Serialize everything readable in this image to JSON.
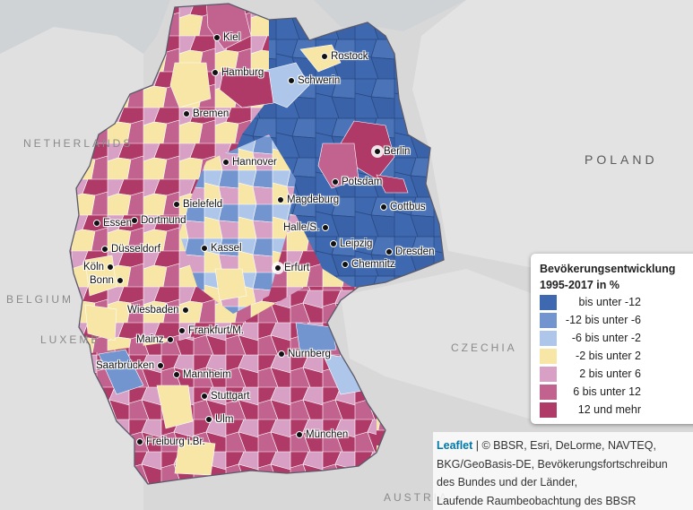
{
  "map": {
    "countries": {
      "poland": "POLAND",
      "netherlands": "NETHERLANDS",
      "belgium": "BELGIUM",
      "luxembourg": "LUXEMB",
      "czechia": "CZECHIA",
      "austria": "AUSTRIA"
    },
    "cities": {
      "kiel": "Kiel",
      "rostock": "Rostock",
      "hamburg": "Hamburg",
      "schwerin": "Schwerin",
      "bremen": "Bremen",
      "berlin": "Berlin",
      "potsdam": "Potsdam",
      "hannover": "Hannover",
      "bielefeld": "Bielefeld",
      "magdeburg": "Magdeburg",
      "cottbus": "Cottbus",
      "essen": "Essen",
      "dortmund": "Dortmund",
      "halle": "Halle/S.",
      "duesseldorf": "Düsseldorf",
      "leipzig": "Leipzig",
      "dresden": "Dresden",
      "kassel": "Kassel",
      "koeln": "Köln",
      "chemnitz": "Chemnitz",
      "erfurt": "Erfurt",
      "bonn": "Bonn",
      "wiesbaden": "Wiesbaden",
      "frankfurt": "Frankfurt/M.",
      "mainz": "Mainz",
      "nuernberg": "Nürnberg",
      "saarbruecken": "Saarbrücken",
      "mannheim": "Mannheim",
      "stuttgart": "Stuttgart",
      "ulm": "Ulm",
      "muenchen": "München",
      "freiburg": "Freiburg i.Br."
    }
  },
  "legend": {
    "title_line1": "Bevökerungsentwicklung",
    "title_line2": "1995-2017 in %",
    "items": [
      {
        "label": "     bis unter -12",
        "color": "#3e68b0"
      },
      {
        "label": "-12 bis unter -6",
        "color": "#7294cf"
      },
      {
        "label": " -6 bis unter -2",
        "color": "#adc6ea"
      },
      {
        "label": " -2 bis unter 2",
        "color": "#f7e6a6"
      },
      {
        "label": "  2 bis unter 6",
        "color": "#d7a0c4"
      },
      {
        "label": "  6 bis unter 12",
        "color": "#c2628f"
      },
      {
        "label": " 12 und mehr",
        "color": "#b03a67"
      }
    ]
  },
  "attribution": {
    "leaflet": "Leaflet",
    "separator": " | © BBSR, Esri, DeLorme, NAVTEQ,",
    "line2": "BKG/GeoBasis-DE, Bevökerungsfortschreibun",
    "line3": "des Bundes und der Länder,",
    "line4": "Laufende Raumbeobachtung des BBSR"
  }
}
